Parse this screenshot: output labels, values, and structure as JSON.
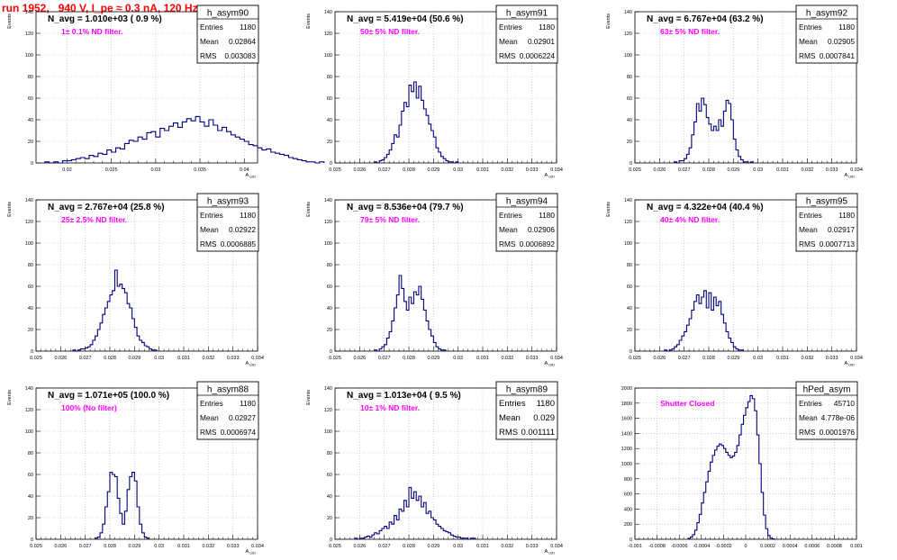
{
  "page": {
    "title": "run 1952,   940 V, I_pe ≈ 0.3 nA, 120 Hz"
  },
  "style": {
    "line_color": "#00007f",
    "annotation_color": "#ff00ff",
    "title_color": "#ff0000",
    "grid_style": "dotted gray"
  },
  "chart_data": [
    {
      "type": "histogram",
      "hist_name": "h_asym90",
      "stats": {
        "entries_label": "Entries",
        "entries": "1180",
        "mean_label": "Mean",
        "mean": "0.02864",
        "rms_label": "RMS",
        "rms": "0.003083"
      },
      "navg_text": "N_avg = 1.010e+03 ( 0.9 %)",
      "filter_text": "1± 0.1% ND filter.",
      "ylabel": "Events",
      "xlabel": "A_UID",
      "xlim": [
        0.0165,
        0.0415
      ],
      "ylim": [
        0,
        140
      ],
      "xticks": [
        0.02,
        0.025,
        0.03,
        0.035,
        0.04
      ],
      "xtick_labels": [
        "0.02",
        "0.025",
        "0.03",
        "0.035",
        "0.04"
      ],
      "yticks": [
        0,
        20,
        40,
        60,
        80,
        100,
        120,
        140
      ],
      "ytick_labels": [
        "0",
        "20",
        "40",
        "60",
        "80",
        "100",
        "120",
        "140"
      ],
      "bins": {
        "start": 0.0175,
        "width": 0.0005,
        "values": [
          1,
          0,
          1,
          0,
          2,
          2,
          3,
          4,
          5,
          4,
          7,
          6,
          9,
          8,
          12,
          10,
          14,
          13,
          18,
          21,
          20,
          24,
          22,
          28,
          29,
          24,
          32,
          30,
          34,
          37,
          33,
          38,
          41,
          39,
          43,
          38,
          34,
          40,
          35,
          30,
          33,
          29,
          26,
          24,
          22,
          20,
          17,
          16,
          14,
          12,
          13,
          10,
          9,
          8,
          7,
          5,
          4,
          3,
          2,
          1,
          1,
          0,
          1
        ]
      }
    },
    {
      "type": "histogram",
      "hist_name": "h_asym91",
      "stats": {
        "entries_label": "Entries",
        "entries": "1180",
        "mean_label": "Mean",
        "mean": "0.02901",
        "rms_label": "RMS",
        "rms": "0.0006224"
      },
      "navg_text": "N_avg = 5.419e+04 (50.6 %)",
      "filter_text": "50± 5% ND filter.",
      "ylabel": "Events",
      "xlabel": "A_UID",
      "xlim": [
        0.025,
        0.034
      ],
      "ylim": [
        0,
        140
      ],
      "xticks": [
        0.025,
        0.026,
        0.027,
        0.028,
        0.029,
        0.03,
        0.031,
        0.032,
        0.033,
        0.034
      ],
      "xtick_labels": [
        "0.025",
        "0.026",
        "0.027",
        "0.028",
        "0.029",
        "0.03",
        "0.031",
        "0.032",
        "0.033",
        "0.034"
      ],
      "yticks": [
        0,
        20,
        40,
        60,
        80,
        100,
        120,
        140
      ],
      "ytick_labels": [
        "0",
        "20",
        "40",
        "60",
        "80",
        "100",
        "120",
        "140"
      ],
      "bins": {
        "start": 0.0266,
        "width": 0.0001,
        "values": [
          1,
          0,
          2,
          3,
          5,
          8,
          12,
          18,
          26,
          24,
          35,
          48,
          56,
          52,
          72,
          66,
          75,
          60,
          71,
          58,
          50,
          44,
          36,
          30,
          24,
          14,
          10,
          6,
          4,
          2,
          1,
          1,
          0,
          1
        ]
      }
    },
    {
      "type": "histogram",
      "hist_name": "h_asym92",
      "stats": {
        "entries_label": "Entries",
        "entries": "1180",
        "mean_label": "Mean",
        "mean": "0.02905",
        "rms_label": "RMS",
        "rms": "0.0007841"
      },
      "navg_text": "N_avg = 6.767e+04 (63.2 %)",
      "filter_text": "63± 5% ND filter.",
      "ylabel": "Events",
      "xlabel": "A_UID",
      "xlim": [
        0.025,
        0.034
      ],
      "ylim": [
        0,
        140
      ],
      "xticks": [
        0.025,
        0.026,
        0.027,
        0.028,
        0.029,
        0.03,
        0.031,
        0.032,
        0.033,
        0.034
      ],
      "xtick_labels": [
        "0.025",
        "0.026",
        "0.027",
        "0.028",
        "0.029",
        "0.03",
        "0.031",
        "0.032",
        "0.033",
        "0.034"
      ],
      "yticks": [
        0,
        20,
        40,
        60,
        80,
        100,
        120,
        140
      ],
      "ytick_labels": [
        "0",
        "20",
        "40",
        "60",
        "80",
        "100",
        "120",
        "140"
      ],
      "bins": {
        "start": 0.0266,
        "width": 0.0001,
        "values": [
          1,
          0,
          2,
          2,
          4,
          8,
          14,
          26,
          38,
          55,
          48,
          60,
          54,
          42,
          36,
          30,
          34,
          30,
          40,
          34,
          48,
          58,
          55,
          40,
          22,
          12,
          6,
          3,
          1,
          1,
          0,
          1
        ]
      }
    },
    {
      "type": "histogram",
      "hist_name": "h_asym93",
      "stats": {
        "entries_label": "Entries",
        "entries": "1180",
        "mean_label": "Mean",
        "mean": "0.02922",
        "rms_label": "RMS",
        "rms": "0.0006885"
      },
      "navg_text": "N_avg = 2.767e+04 (25.8 %)",
      "filter_text": "25± 2.5% ND filter.",
      "ylabel": "Events",
      "xlabel": "A_UID",
      "xlim": [
        0.025,
        0.034
      ],
      "ylim": [
        0,
        140
      ],
      "xticks": [
        0.025,
        0.026,
        0.027,
        0.028,
        0.029,
        0.03,
        0.031,
        0.032,
        0.033,
        0.034
      ],
      "xtick_labels": [
        "0.025",
        "0.026",
        "0.027",
        "0.028",
        "0.029",
        "0.03",
        "0.031",
        "0.032",
        "0.033",
        "0.034"
      ],
      "yticks": [
        0,
        20,
        40,
        60,
        80,
        100,
        120,
        140
      ],
      "ytick_labels": [
        "0",
        "20",
        "40",
        "60",
        "80",
        "100",
        "120",
        "140"
      ],
      "bins": {
        "start": 0.0265,
        "width": 0.0001,
        "values": [
          1,
          0,
          1,
          2,
          2,
          3,
          4,
          6,
          10,
          14,
          20,
          26,
          34,
          40,
          46,
          52,
          56,
          75,
          60,
          62,
          58,
          54,
          44,
          40,
          30,
          22,
          14,
          10,
          8,
          5,
          4,
          2,
          1,
          1
        ]
      }
    },
    {
      "type": "histogram",
      "hist_name": "h_asym94",
      "stats": {
        "entries_label": "Entries",
        "entries": "1180",
        "mean_label": "Mean",
        "mean": "0.02906",
        "rms_label": "RMS",
        "rms": "0.0006892"
      },
      "navg_text": "N_avg = 8.536e+04 (79.7 %)",
      "filter_text": "79± 5% ND filter.",
      "ylabel": "Events",
      "xlabel": "A_UID",
      "xlim": [
        0.025,
        0.034
      ],
      "ylim": [
        0,
        140
      ],
      "xticks": [
        0.025,
        0.026,
        0.027,
        0.028,
        0.029,
        0.03,
        0.031,
        0.032,
        0.033,
        0.034
      ],
      "xtick_labels": [
        "0.025",
        "0.026",
        "0.027",
        "0.028",
        "0.029",
        "0.03",
        "0.031",
        "0.032",
        "0.033",
        "0.034"
      ],
      "yticks": [
        0,
        20,
        40,
        60,
        80,
        100,
        120,
        140
      ],
      "ytick_labels": [
        "0",
        "20",
        "40",
        "60",
        "80",
        "100",
        "120",
        "140"
      ],
      "bins": {
        "start": 0.0266,
        "width": 0.0001,
        "values": [
          1,
          0,
          2,
          4,
          6,
          12,
          18,
          28,
          40,
          52,
          70,
          58,
          46,
          38,
          50,
          44,
          55,
          52,
          60,
          48,
          38,
          28,
          20,
          14,
          8,
          4,
          2,
          1,
          1
        ]
      }
    },
    {
      "type": "histogram",
      "hist_name": "h_asym95",
      "stats": {
        "entries_label": "Entries",
        "entries": "1180",
        "mean_label": "Mean",
        "mean": "0.02917",
        "rms_label": "RMS",
        "rms": "0.0007713"
      },
      "navg_text": "N_avg = 4.322e+04 (40.4 %)",
      "filter_text": "40± 4% ND filter.",
      "ylabel": "Events",
      "xlabel": "A_UID",
      "xlim": [
        0.025,
        0.034
      ],
      "ylim": [
        0,
        140
      ],
      "xticks": [
        0.025,
        0.026,
        0.027,
        0.028,
        0.029,
        0.03,
        0.031,
        0.032,
        0.033,
        0.034
      ],
      "xtick_labels": [
        "0.025",
        "0.026",
        "0.027",
        "0.028",
        "0.029",
        "0.03",
        "0.031",
        "0.032",
        "0.033",
        "0.034"
      ],
      "yticks": [
        0,
        20,
        40,
        60,
        80,
        100,
        120,
        140
      ],
      "ytick_labels": [
        "0",
        "20",
        "40",
        "60",
        "80",
        "100",
        "120",
        "140"
      ],
      "bins": {
        "start": 0.0262,
        "width": 0.0001,
        "values": [
          1,
          0,
          1,
          2,
          4,
          6,
          10,
          14,
          18,
          24,
          30,
          38,
          46,
          52,
          44,
          50,
          56,
          40,
          54,
          38,
          50,
          42,
          46,
          34,
          26,
          18,
          12,
          8,
          4,
          2,
          1,
          1
        ]
      }
    },
    {
      "type": "histogram",
      "hist_name": "h_asym88",
      "stats": {
        "entries_label": "Entries",
        "entries": "1180",
        "mean_label": "Mean",
        "mean": "0.02927",
        "rms_label": "RMS",
        "rms": "0.0006974"
      },
      "navg_text": "N_avg = 1.071e+05 (100.0 %)",
      "filter_text": "100% (No filter)",
      "ylabel": "Events",
      "xlabel": "A_UID",
      "xlim": [
        0.025,
        0.034
      ],
      "ylim": [
        0,
        140
      ],
      "xticks": [
        0.025,
        0.026,
        0.027,
        0.028,
        0.029,
        0.03,
        0.031,
        0.032,
        0.033,
        0.034
      ],
      "xtick_labels": [
        "0.025",
        "0.026",
        "0.027",
        "0.028",
        "0.029",
        "0.03",
        "0.031",
        "0.032",
        "0.033",
        "0.034"
      ],
      "yticks": [
        0,
        20,
        40,
        60,
        80,
        100,
        120,
        140
      ],
      "ytick_labels": [
        "0",
        "20",
        "40",
        "60",
        "80",
        "100",
        "120",
        "140"
      ],
      "bins": {
        "start": 0.0274,
        "width": 0.0001,
        "values": [
          1,
          2,
          6,
          14,
          30,
          44,
          62,
          60,
          58,
          38,
          24,
          14,
          26,
          46,
          58,
          62,
          54,
          30,
          14,
          6,
          2,
          1
        ]
      }
    },
    {
      "type": "histogram",
      "hist_name": "h_asym89",
      "stats": {
        "entries_label": "Entries",
        "entries": "1180",
        "mean_label": "Mean",
        "mean": "0.029",
        "rms_label": "RMS",
        "rms": "0.001111"
      },
      "navg_text": "N_avg = 1.013e+04 ( 9.5 %)",
      "filter_text": "10± 1% ND filter.",
      "ylabel": "Events",
      "xlabel": "A_UID",
      "xlim": [
        0.025,
        0.034
      ],
      "ylim": [
        0,
        140
      ],
      "xticks": [
        0.025,
        0.026,
        0.027,
        0.028,
        0.029,
        0.03,
        0.031,
        0.032,
        0.033,
        0.034
      ],
      "xtick_labels": [
        "0.025",
        "0.026",
        "0.027",
        "0.028",
        "0.029",
        "0.03",
        "0.031",
        "0.032",
        "0.033",
        "0.034"
      ],
      "yticks": [
        0,
        20,
        40,
        60,
        80,
        100,
        120,
        140
      ],
      "ytick_labels": [
        "0",
        "20",
        "40",
        "60",
        "80",
        "100",
        "120",
        "140"
      ],
      "bins": {
        "start": 0.0258,
        "width": 0.0001,
        "values": [
          1,
          0,
          1,
          1,
          2,
          3,
          2,
          4,
          6,
          5,
          8,
          10,
          12,
          10,
          16,
          14,
          22,
          18,
          28,
          26,
          36,
          30,
          48,
          38,
          44,
          36,
          40,
          30,
          34,
          24,
          26,
          20,
          18,
          14,
          12,
          10,
          8,
          7,
          6,
          4,
          3,
          2,
          2,
          1,
          1,
          1,
          0,
          1,
          1
        ]
      }
    },
    {
      "type": "histogram",
      "hist_name": "hPed_asym",
      "stats": {
        "entries_label": "Entries",
        "entries": "45710",
        "mean_label": "Mean",
        "mean": "4.778e-06",
        "rms_label": "RMS",
        "rms": "0.0001976"
      },
      "navg_text": "",
      "filter_text": "Shutter Closed",
      "ylabel": "",
      "xlabel": "",
      "xlim": [
        -0.001,
        0.001
      ],
      "ylim": [
        0,
        2000
      ],
      "xticks": [
        -0.001,
        -0.0008,
        -0.0006,
        -0.0004,
        -0.0002,
        0,
        0.0002,
        0.0004,
        0.0006,
        0.0008,
        0.001
      ],
      "xtick_labels": [
        "-0.001",
        "-0.0008",
        "-0.0006",
        "-0.0004",
        "-0.0002",
        "0",
        "0.0002",
        "0.0004",
        "0.0006",
        "0.0008",
        "0.001"
      ],
      "yticks": [
        0,
        200,
        400,
        600,
        800,
        1000,
        1200,
        1400,
        1600,
        1800,
        2000
      ],
      "ytick_labels": [
        "0",
        "200",
        "400",
        "600",
        "800",
        "1000",
        "1200",
        "1400",
        "1600",
        "1800",
        "2000"
      ],
      "bins": {
        "start": -0.00052,
        "width": 2e-05,
        "values": [
          10,
          30,
          60,
          120,
          220,
          330,
          480,
          620,
          760,
          900,
          1020,
          1110,
          1180,
          1230,
          1260,
          1240,
          1200,
          1150,
          1110,
          1080,
          1100,
          1150,
          1240,
          1380,
          1520,
          1640,
          1740,
          1820,
          1900,
          1860,
          1700,
          1380,
          1000,
          620,
          320,
          140,
          50,
          15,
          5
        ]
      }
    }
  ]
}
